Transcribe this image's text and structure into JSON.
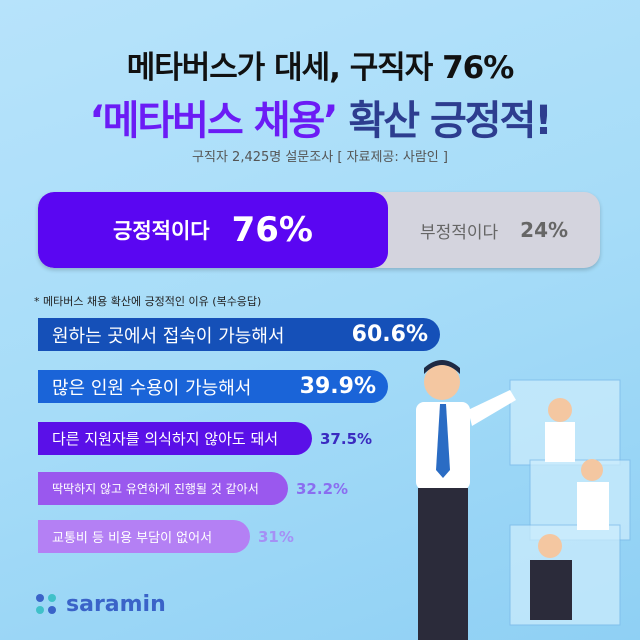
{
  "header": {
    "line1": "메타버스가 대세, 구직자 76%",
    "line2_highlight": "‘메타버스 채용’",
    "line2_rest": " 확산 긍정적!",
    "subtitle": "구직자 2,425명 설문조사 [ 자료제공: 사람인 ]"
  },
  "colors": {
    "accent": "#5a06f2",
    "title_blue": "#2d3d8f",
    "negative": "#d4d4de"
  },
  "chart_data": [
    {
      "type": "bar",
      "stacked": true,
      "orientation": "horizontal",
      "categories": [
        "긍정적이다",
        "부정적이다"
      ],
      "values": [
        76,
        24
      ],
      "labels": [
        "76%",
        "24%"
      ]
    },
    {
      "type": "bar",
      "orientation": "horizontal",
      "title": "* 메타버스 채용 확산에 긍정적인 이유 (복수응답)",
      "categories": [
        "원하는 곳에서 접속이 가능해서",
        "많은 인원 수용이 가능해서",
        "다른 지원자를 의식하지 않아도 돼서",
        "딱딱하지 않고 유연하게 진행될 것 같아서",
        "교통비 등 비용 부담이 없어서"
      ],
      "values": [
        60.6,
        39.9,
        37.5,
        32.2,
        31
      ],
      "labels": [
        "60.6%",
        "39.9%",
        "37.5%",
        "32.2%",
        "31%"
      ]
    }
  ],
  "logo": {
    "text": "saramin"
  }
}
